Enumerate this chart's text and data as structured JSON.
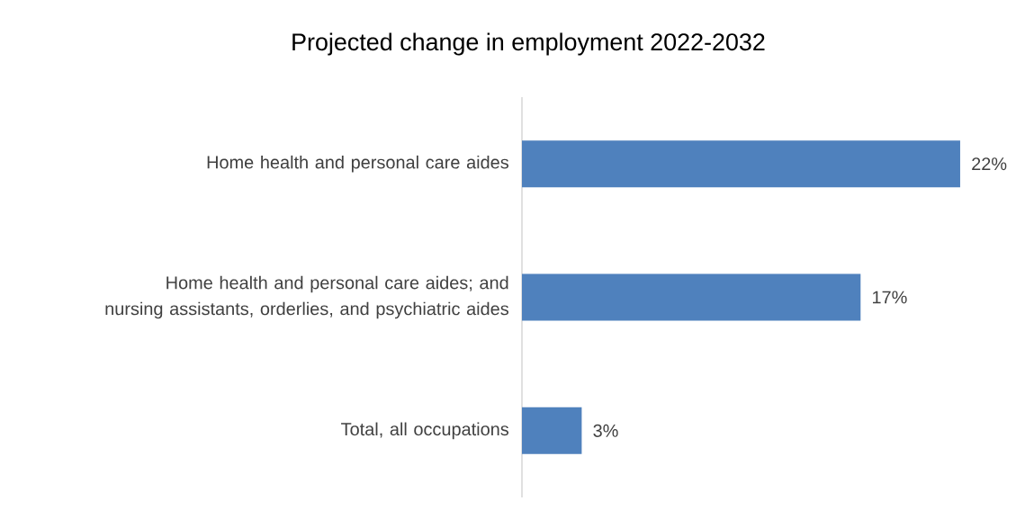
{
  "chart_data": {
    "type": "bar",
    "orientation": "horizontal",
    "title": "Projected change in employment 2022-2032",
    "categories": [
      "Home health and personal care aides",
      "Home health and personal care aides; and nursing assistants, orderlies, and psychiatric aides",
      "Total, all occupations"
    ],
    "values": [
      22,
      17,
      3
    ],
    "color": "#4f81bd",
    "value_labels": [
      "22%",
      "17%",
      "3%"
    ]
  }
}
